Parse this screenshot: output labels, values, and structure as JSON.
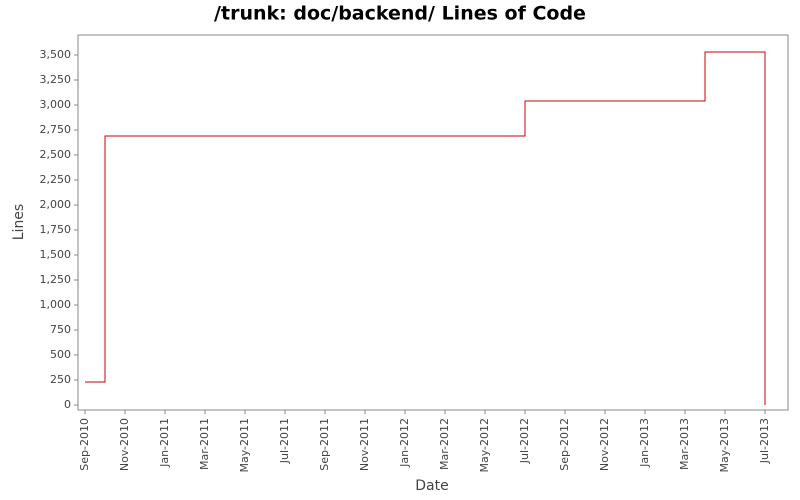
{
  "chart_data": {
    "type": "step",
    "title": "/trunk: doc/backend/ Lines of Code",
    "x_label": "Date",
    "y_label": "Lines",
    "x": [
      "2010-09",
      "2010-10",
      "2010-10",
      "2012-07",
      "2013-04",
      "2013-07"
    ],
    "values": [
      230,
      2430,
      2690,
      3040,
      3530,
      0
    ],
    "step": "post",
    "color": "#cc0000",
    "xlim": [
      "2010-09",
      "2013-08"
    ],
    "xticks": [
      {
        "value": "2010-09",
        "label": "Sep-2010"
      },
      {
        "value": "2010-11",
        "label": "Nov-2010"
      },
      {
        "value": "2011-01",
        "label": "Jan-2011"
      },
      {
        "value": "2011-03",
        "label": "Mar-2011"
      },
      {
        "value": "2011-05",
        "label": "May-2011"
      },
      {
        "value": "2011-07",
        "label": "Jul-2011"
      },
      {
        "value": "2011-09",
        "label": "Sep-2011"
      },
      {
        "value": "2011-11",
        "label": "Nov-2011"
      },
      {
        "value": "2012-01",
        "label": "Jan-2012"
      },
      {
        "value": "2012-03",
        "label": "Mar-2012"
      },
      {
        "value": "2012-05",
        "label": "May-2012"
      },
      {
        "value": "2012-07",
        "label": "Jul-2012"
      },
      {
        "value": "2012-09",
        "label": "Sep-2012"
      },
      {
        "value": "2012-11",
        "label": "Nov-2012"
      },
      {
        "value": "2013-01",
        "label": "Jan-2013"
      },
      {
        "value": "2013-03",
        "label": "Mar-2013"
      },
      {
        "value": "2013-05",
        "label": "May-2013"
      },
      {
        "value": "2013-07",
        "label": "Jul-2013"
      }
    ],
    "ylim": [
      -50,
      3700
    ],
    "yticks": [
      0,
      250,
      500,
      750,
      {
        "value": 1000,
        "label": "1,000"
      },
      {
        "value": 1250,
        "label": "1,250"
      },
      {
        "value": 1500,
        "label": "1,500"
      },
      {
        "value": 1750,
        "label": "1,750"
      },
      {
        "value": 2000,
        "label": "2,000"
      },
      {
        "value": 2250,
        "label": "2,250"
      },
      {
        "value": 2500,
        "label": "2,500"
      },
      {
        "value": 2750,
        "label": "2,750"
      },
      {
        "value": 3000,
        "label": "3,000"
      },
      {
        "value": 3250,
        "label": "3,250"
      },
      {
        "value": 3500,
        "label": "3,500"
      }
    ],
    "grid": false
  }
}
